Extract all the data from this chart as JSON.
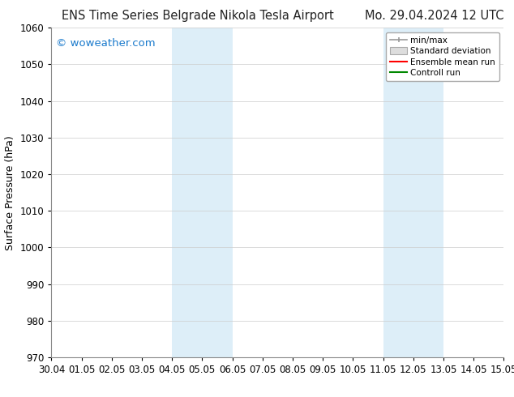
{
  "title_left": "ENS Time Series Belgrade Nikola Tesla Airport",
  "title_right": "Mo. 29.04.2024 12 UTC",
  "ylabel": "Surface Pressure (hPa)",
  "watermark": "© woweather.com",
  "watermark_color": "#1a7acc",
  "ylim": [
    970,
    1060
  ],
  "yticks": [
    970,
    980,
    990,
    1000,
    1010,
    1020,
    1030,
    1040,
    1050,
    1060
  ],
  "xtick_labels": [
    "30.04",
    "01.05",
    "02.05",
    "03.05",
    "04.05",
    "05.05",
    "06.05",
    "07.05",
    "08.05",
    "09.05",
    "10.05",
    "11.05",
    "12.05",
    "13.05",
    "14.05",
    "15.05"
  ],
  "xtick_positions": [
    0,
    1,
    2,
    3,
    4,
    5,
    6,
    7,
    8,
    9,
    10,
    11,
    12,
    13,
    14,
    15
  ],
  "shaded_regions": [
    {
      "xmin": 4.0,
      "xmax": 6.0
    },
    {
      "xmin": 11.0,
      "xmax": 13.0
    }
  ],
  "shade_color": "#ddeef8",
  "background_color": "#ffffff",
  "grid_color": "#cccccc",
  "legend_labels": [
    "min/max",
    "Standard deviation",
    "Ensemble mean run",
    "Controll run"
  ],
  "legend_minmax_color": "#999999",
  "legend_std_facecolor": "#dddddd",
  "legend_std_edgecolor": "#aaaaaa",
  "legend_mean_color": "#ff0000",
  "legend_ctrl_color": "#008800",
  "title_fontsize": 10.5,
  "axis_label_fontsize": 9,
  "tick_fontsize": 8.5,
  "watermark_fontsize": 9.5
}
